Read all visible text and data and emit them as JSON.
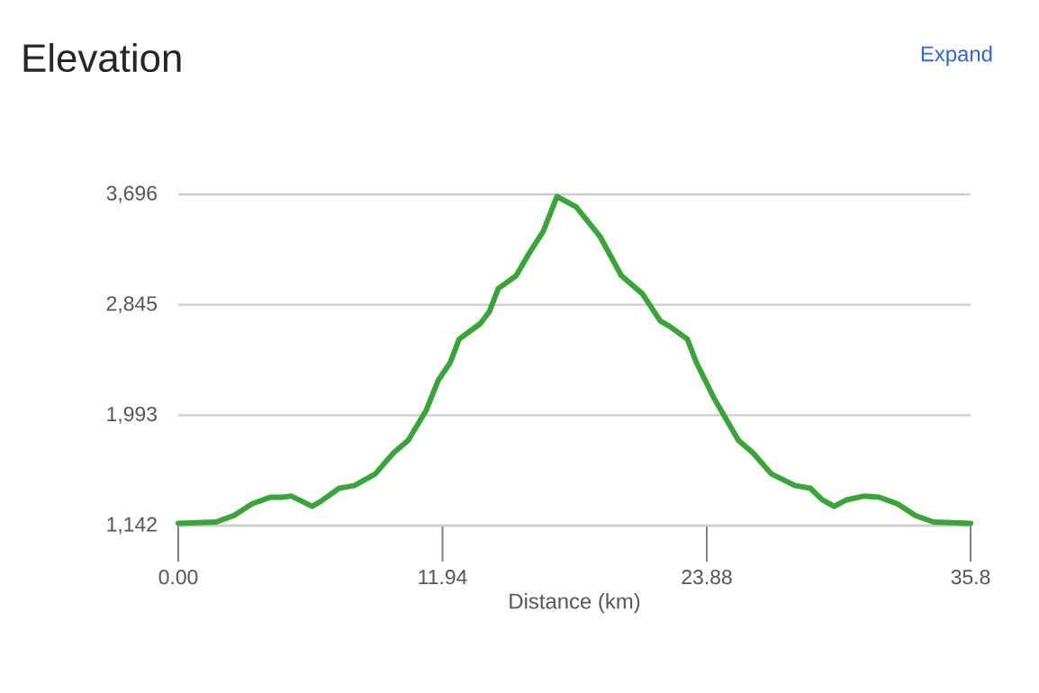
{
  "chart_data": {
    "type": "line",
    "title": "Elevation",
    "xlabel": "Distance (km)",
    "annotations": [
      "Expand"
    ],
    "x": [
      0,
      1.71,
      2.52,
      3.34,
      4.15,
      4.69,
      5.1,
      6.05,
      6.45,
      7.27,
      7.95,
      8.9,
      9.71,
      10.39,
      11.2,
      11.74,
      12.29,
      12.69,
      13.65,
      14.05,
      14.46,
      15.27,
      15.81,
      16.49,
      17.11,
      17.98,
      19.06,
      20.02,
      20.97,
      21.78,
      22.19,
      23.0,
      23.41,
      24.22,
      25.31,
      25.98,
      26.8,
      27.88,
      28.56,
      29.1,
      29.64,
      30.19,
      31.0,
      31.68,
      32.49,
      33.3,
      34.12,
      35.8
    ],
    "series": [
      {
        "color": "#3aa43a",
        "values": [
          1160,
          1170,
          1220,
          1310,
          1360,
          1360,
          1370,
          1290,
          1330,
          1430,
          1450,
          1540,
          1700,
          1800,
          2030,
          2260,
          2400,
          2580,
          2700,
          2790,
          2970,
          3070,
          3230,
          3410,
          3680,
          3600,
          3370,
          3070,
          2930,
          2720,
          2680,
          2580,
          2400,
          2120,
          1800,
          1700,
          1540,
          1450,
          1430,
          1340,
          1290,
          1340,
          1370,
          1360,
          1310,
          1220,
          1170,
          1160
        ]
      }
    ],
    "xlim": [
      0,
      35.8
    ],
    "xticks": [
      {
        "value": 0,
        "label": "0.00"
      },
      11.94,
      23.88,
      35.8
    ],
    "ylim": [
      1142,
      3696
    ],
    "yticks": [
      {
        "value": 1142,
        "label": "1,142"
      },
      {
        "value": 1993,
        "label": "1,993"
      },
      {
        "value": 2845,
        "label": "2,845"
      },
      {
        "value": 3696,
        "label": "3,696"
      }
    ],
    "grid": "y",
    "marker": "none",
    "line_style": "solid"
  }
}
